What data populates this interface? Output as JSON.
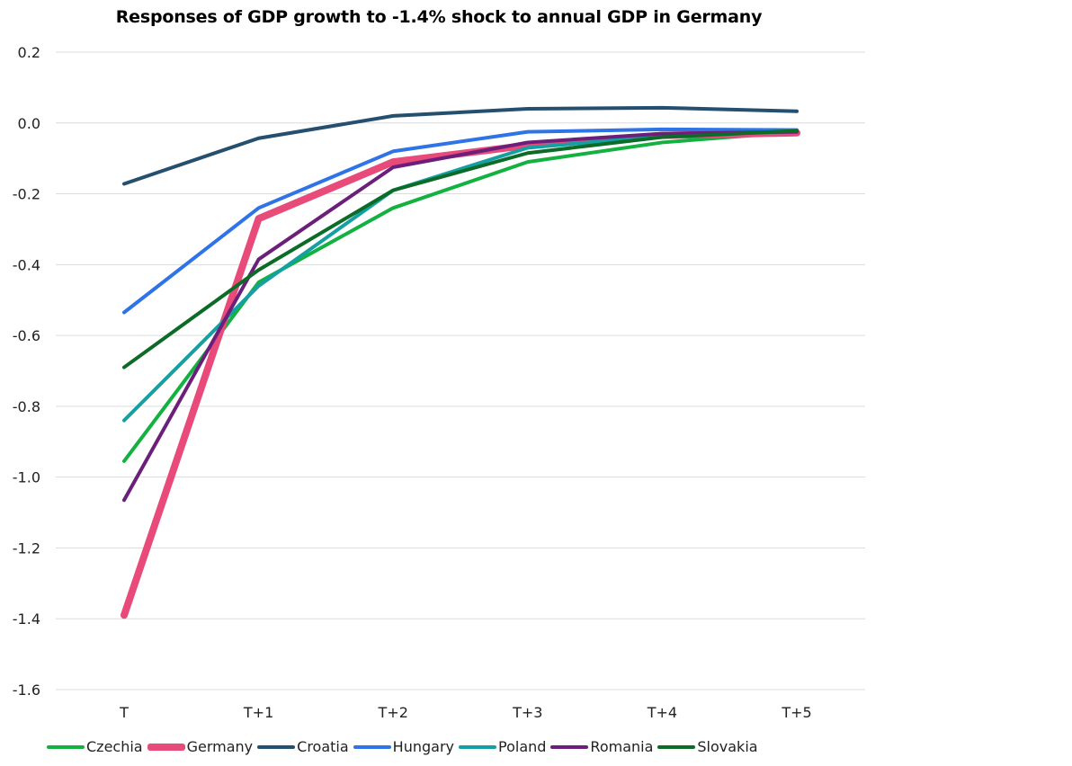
{
  "chart_data": {
    "type": "line",
    "title": "Responses of GDP growth to -1.4% shock to annual GDP in Germany",
    "xlabel": "",
    "ylabel": "",
    "categories": [
      "T",
      "T+1",
      "T+2",
      "T+3",
      "T+4",
      "T+5"
    ],
    "ylim": [
      -1.6,
      0.2
    ],
    "yticks": [
      0.2,
      0.0,
      -0.2,
      -0.4,
      -0.6,
      -0.8,
      -1.0,
      -1.2,
      -1.4,
      -1.6
    ],
    "ytick_labels": [
      "0.2",
      "0.0",
      "-0.2",
      "-0.4",
      "-0.6",
      "-0.8",
      "-1.0",
      "-1.2",
      "-1.4",
      "-1.6"
    ],
    "grid": true,
    "legend_position": "bottom",
    "series": [
      {
        "name": "Czechia",
        "color": "#13b140",
        "emphasis": false,
        "values": [
          -0.955,
          -0.45,
          -0.24,
          -0.11,
          -0.055,
          -0.025
        ]
      },
      {
        "name": "Germany",
        "color": "#e84a7a",
        "emphasis": true,
        "values": [
          -1.39,
          -0.27,
          -0.11,
          -0.063,
          -0.035,
          -0.028
        ]
      },
      {
        "name": "Croatia",
        "color": "#244f6e",
        "emphasis": false,
        "values": [
          -0.172,
          -0.043,
          0.02,
          0.04,
          0.043,
          0.033
        ]
      },
      {
        "name": "Hungary",
        "color": "#2e74e6",
        "emphasis": false,
        "values": [
          -0.535,
          -0.24,
          -0.08,
          -0.025,
          -0.018,
          -0.02
        ]
      },
      {
        "name": "Poland",
        "color": "#14a0a2",
        "emphasis": false,
        "values": [
          -0.84,
          -0.46,
          -0.19,
          -0.07,
          -0.037,
          -0.022
        ]
      },
      {
        "name": "Romania",
        "color": "#6b1f7a",
        "emphasis": false,
        "values": [
          -1.065,
          -0.385,
          -0.125,
          -0.055,
          -0.03,
          -0.025
        ]
      },
      {
        "name": "Slovakia",
        "color": "#0b6b27",
        "emphasis": false,
        "values": [
          -0.69,
          -0.415,
          -0.19,
          -0.085,
          -0.04,
          -0.022
        ]
      }
    ]
  }
}
